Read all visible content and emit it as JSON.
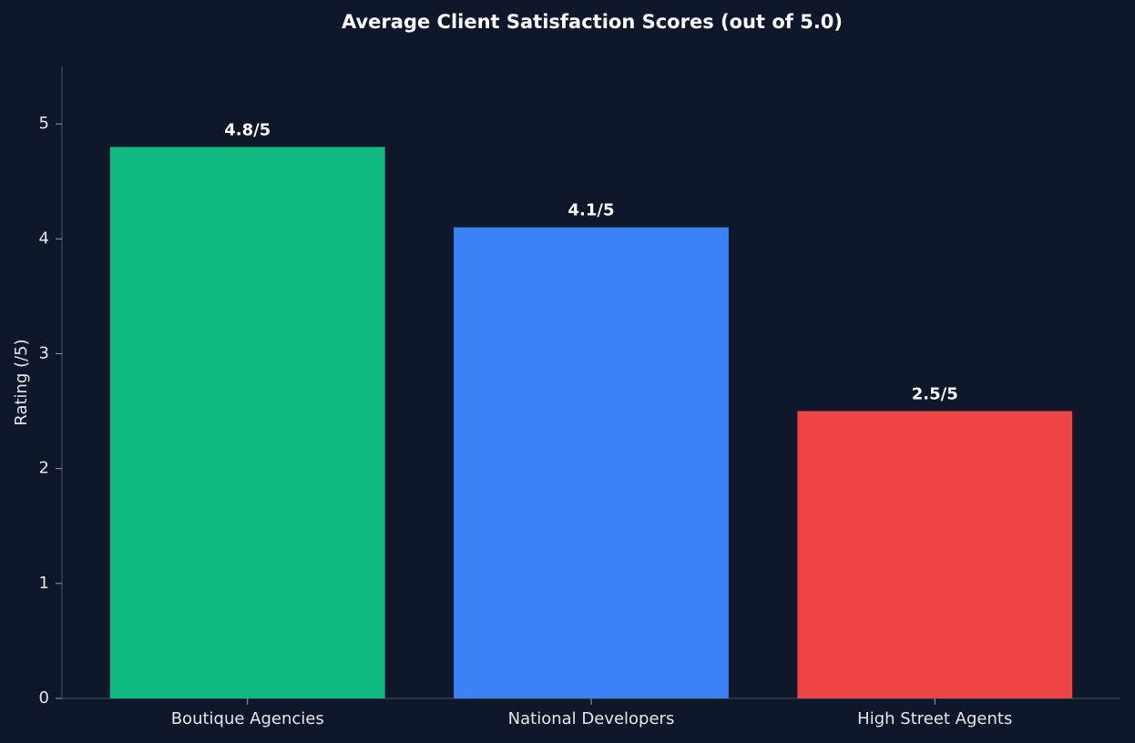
{
  "chart_data": {
    "type": "bar",
    "title": "Average Client Satisfaction Scores (out of 5.0)",
    "ylabel": "Rating (/5)",
    "categories": [
      "Boutique Agencies",
      "National Developers",
      "High Street Agents"
    ],
    "values": [
      4.8,
      4.1,
      2.5
    ],
    "value_labels": [
      "4.8/5",
      "4.1/5",
      "2.5/5"
    ],
    "colors": [
      "#10b981",
      "#3b82f6",
      "#ef4444"
    ],
    "ylim": [
      0,
      5.5
    ],
    "yticks": [
      0,
      1,
      2,
      3,
      4,
      5
    ],
    "grid": false
  }
}
